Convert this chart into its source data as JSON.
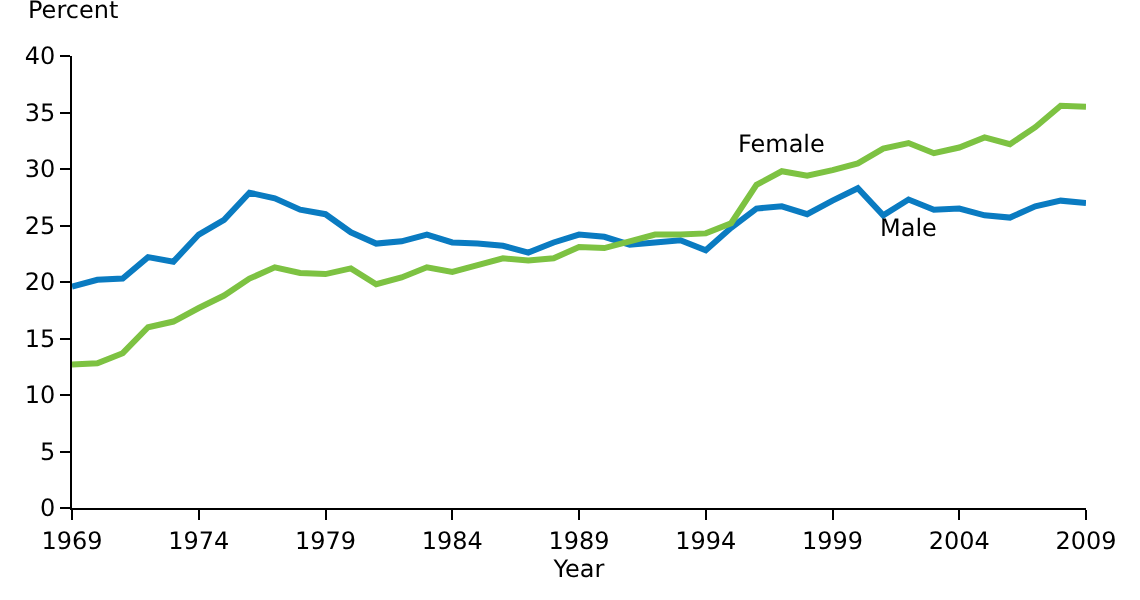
{
  "chart_data": {
    "type": "line",
    "xlabel": "Year",
    "ylabel": "Percent",
    "x": [
      1969,
      1970,
      1971,
      1972,
      1973,
      1974,
      1975,
      1976,
      1977,
      1978,
      1979,
      1980,
      1981,
      1982,
      1983,
      1984,
      1985,
      1986,
      1987,
      1988,
      1989,
      1990,
      1991,
      1992,
      1993,
      1994,
      1995,
      1996,
      1997,
      1998,
      1999,
      2000,
      2001,
      2002,
      2003,
      2004,
      2005,
      2006,
      2007,
      2008,
      2009
    ],
    "series": [
      {
        "name": "Male",
        "color": "#0a7bc1",
        "values": [
          19.6,
          20.2,
          20.3,
          22.2,
          21.8,
          24.2,
          25.5,
          27.9,
          27.4,
          26.4,
          26.0,
          24.4,
          23.4,
          23.6,
          24.2,
          23.5,
          23.4,
          23.2,
          22.6,
          23.5,
          24.2,
          24.0,
          23.3,
          23.5,
          23.7,
          22.8,
          24.8,
          26.5,
          26.7,
          26.0,
          27.2,
          28.3,
          25.9,
          27.3,
          26.4,
          26.5,
          25.9,
          25.7,
          26.7,
          27.2,
          27.0
        ]
      },
      {
        "name": "Female",
        "color": "#7dc242",
        "values": [
          12.7,
          12.8,
          13.7,
          16.0,
          16.5,
          17.7,
          18.8,
          20.3,
          21.3,
          20.8,
          20.7,
          21.2,
          19.8,
          20.4,
          21.3,
          20.9,
          21.5,
          22.1,
          21.9,
          22.1,
          23.1,
          23.0,
          23.6,
          24.2,
          24.2,
          24.3,
          25.2,
          28.6,
          29.8,
          29.4,
          29.9,
          30.5,
          31.8,
          32.3,
          31.4,
          31.9,
          32.8,
          32.2,
          33.7,
          35.6,
          35.5
        ]
      }
    ],
    "xlim": [
      1969,
      2009
    ],
    "xticks": [
      1969,
      1974,
      1979,
      1984,
      1989,
      1994,
      1999,
      2004,
      2009
    ],
    "ylim": [
      0,
      40
    ],
    "yticks": [
      0,
      5,
      10,
      15,
      20,
      25,
      30,
      35,
      40
    ],
    "legend": false,
    "marker": "none",
    "line_style": "solid"
  }
}
